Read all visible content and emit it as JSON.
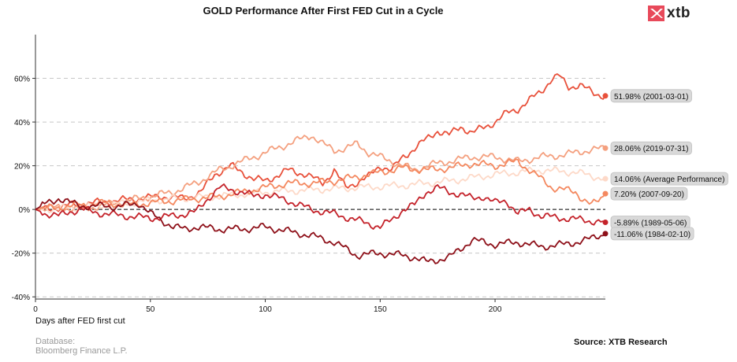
{
  "header": {
    "title": "GOLD Performance After First FED Cut in a Cycle",
    "logo_text": "xtb"
  },
  "footer": {
    "database_label": "Database:",
    "database_value": "Bloomberg Finance L.P.",
    "source": "Source: XTB Research"
  },
  "chart_data": {
    "type": "line",
    "title": "GOLD Performance After First FED Cut in a Cycle",
    "xlabel": "Days after FED first cut",
    "ylabel": "",
    "xlim": [
      0,
      248
    ],
    "ylim": [
      -41,
      80
    ],
    "xticks": [
      0,
      50,
      100,
      150,
      200
    ],
    "yticks": [
      -40,
      -20,
      0,
      20,
      40,
      60
    ],
    "ytick_format": "percent",
    "grid": "horizontal-dashed",
    "zero_line": true,
    "series": [
      {
        "name": "2001-03-01",
        "label": "51.98% (2001-03-01)",
        "final": 51.98,
        "color": "#e8503a",
        "points": [
          [
            0,
            0
          ],
          [
            8,
            0.5
          ],
          [
            15,
            2
          ],
          [
            25,
            3
          ],
          [
            35,
            4
          ],
          [
            45,
            5
          ],
          [
            55,
            6
          ],
          [
            65,
            5
          ],
          [
            72,
            8
          ],
          [
            78,
            16
          ],
          [
            85,
            20
          ],
          [
            95,
            14
          ],
          [
            100,
            13
          ],
          [
            110,
            18
          ],
          [
            118,
            16
          ],
          [
            125,
            12
          ],
          [
            130,
            18
          ],
          [
            135,
            10
          ],
          [
            145,
            15
          ],
          [
            150,
            20
          ],
          [
            155,
            18
          ],
          [
            160,
            24
          ],
          [
            165,
            28
          ],
          [
            170,
            32
          ],
          [
            175,
            36
          ],
          [
            180,
            34
          ],
          [
            185,
            38
          ],
          [
            190,
            35
          ],
          [
            200,
            40
          ],
          [
            205,
            44
          ],
          [
            210,
            46
          ],
          [
            215,
            50
          ],
          [
            220,
            54
          ],
          [
            225,
            60
          ],
          [
            228,
            61
          ],
          [
            232,
            56
          ],
          [
            237,
            57
          ],
          [
            243,
            53
          ],
          [
            248,
            52
          ]
        ]
      },
      {
        "name": "2019-07-31",
        "label": "28.06% (2019-07-31)",
        "final": 28.06,
        "color": "#f4a07f",
        "points": [
          [
            0,
            0
          ],
          [
            10,
            1
          ],
          [
            20,
            0
          ],
          [
            30,
            2
          ],
          [
            40,
            4
          ],
          [
            50,
            6
          ],
          [
            60,
            8
          ],
          [
            70,
            12
          ],
          [
            80,
            18
          ],
          [
            85,
            20
          ],
          [
            90,
            22
          ],
          [
            95,
            24
          ],
          [
            100,
            26
          ],
          [
            105,
            28
          ],
          [
            110,
            30
          ],
          [
            115,
            32
          ],
          [
            120,
            34
          ],
          [
            125,
            30
          ],
          [
            130,
            27
          ],
          [
            135,
            28
          ],
          [
            140,
            30
          ],
          [
            145,
            26
          ],
          [
            150,
            24
          ],
          [
            155,
            22
          ],
          [
            160,
            20
          ],
          [
            165,
            18
          ],
          [
            170,
            20
          ],
          [
            180,
            22
          ],
          [
            190,
            24
          ],
          [
            200,
            24
          ],
          [
            210,
            22
          ],
          [
            220,
            24
          ],
          [
            230,
            25
          ],
          [
            240,
            27
          ],
          [
            248,
            28
          ]
        ]
      },
      {
        "name": "Average Performance",
        "label": "14.06% (Average Performance)",
        "final": 14.06,
        "color": "#fdd9c8",
        "points": [
          [
            0,
            0
          ],
          [
            20,
            1
          ],
          [
            40,
            3
          ],
          [
            60,
            5
          ],
          [
            80,
            6
          ],
          [
            100,
            8
          ],
          [
            120,
            9
          ],
          [
            140,
            10
          ],
          [
            160,
            11
          ],
          [
            180,
            13
          ],
          [
            200,
            16
          ],
          [
            220,
            18
          ],
          [
            235,
            17
          ],
          [
            248,
            14
          ]
        ]
      },
      {
        "name": "2007-09-20",
        "label": "7.20% (2007-09-20)",
        "final": 7.2,
        "color": "#f4885f",
        "points": [
          [
            0,
            0
          ],
          [
            10,
            1
          ],
          [
            20,
            2
          ],
          [
            30,
            3
          ],
          [
            40,
            2
          ],
          [
            50,
            3
          ],
          [
            60,
            4
          ],
          [
            70,
            5
          ],
          [
            80,
            6
          ],
          [
            90,
            8
          ],
          [
            100,
            10
          ],
          [
            110,
            12
          ],
          [
            120,
            12
          ],
          [
            130,
            13
          ],
          [
            140,
            15
          ],
          [
            150,
            17
          ],
          [
            160,
            19
          ],
          [
            170,
            18
          ],
          [
            180,
            19
          ],
          [
            190,
            21
          ],
          [
            200,
            20
          ],
          [
            210,
            22
          ],
          [
            215,
            18
          ],
          [
            220,
            14
          ],
          [
            225,
            10
          ],
          [
            230,
            9
          ],
          [
            235,
            8
          ],
          [
            238,
            5
          ],
          [
            242,
            2
          ],
          [
            245,
            4
          ],
          [
            248,
            7
          ]
        ]
      },
      {
        "name": "1989-05-06",
        "label": "-5.89% (1989-05-06)",
        "final": -5.89,
        "color": "#c4222a",
        "points": [
          [
            0,
            0
          ],
          [
            5,
            -2
          ],
          [
            10,
            -3
          ],
          [
            15,
            -1
          ],
          [
            20,
            0
          ],
          [
            30,
            -2
          ],
          [
            40,
            -3
          ],
          [
            50,
            -4
          ],
          [
            60,
            -3
          ],
          [
            70,
            -1
          ],
          [
            75,
            5
          ],
          [
            80,
            10
          ],
          [
            90,
            8
          ],
          [
            95,
            6
          ],
          [
            100,
            7
          ],
          [
            110,
            4
          ],
          [
            120,
            0
          ],
          [
            130,
            -2
          ],
          [
            140,
            -5
          ],
          [
            150,
            -8
          ],
          [
            155,
            -5
          ],
          [
            160,
            0
          ],
          [
            165,
            2
          ],
          [
            170,
            8
          ],
          [
            175,
            10
          ],
          [
            180,
            8
          ],
          [
            185,
            7
          ],
          [
            190,
            5
          ],
          [
            195,
            6
          ],
          [
            200,
            3
          ],
          [
            205,
            4
          ],
          [
            210,
            -2
          ],
          [
            215,
            0
          ],
          [
            220,
            -3
          ],
          [
            230,
            -4
          ],
          [
            240,
            -5
          ],
          [
            248,
            -6
          ]
        ]
      },
      {
        "name": "1984-02-10",
        "label": "-11.06% (1984-02-10)",
        "final": -11.06,
        "color": "#8e1019",
        "points": [
          [
            0,
            0
          ],
          [
            5,
            3
          ],
          [
            10,
            5
          ],
          [
            15,
            3
          ],
          [
            20,
            2
          ],
          [
            25,
            1
          ],
          [
            30,
            2
          ],
          [
            35,
            1
          ],
          [
            40,
            2
          ],
          [
            45,
            3
          ],
          [
            50,
            -2
          ],
          [
            55,
            -5
          ],
          [
            60,
            -8
          ],
          [
            65,
            -9
          ],
          [
            70,
            -8
          ],
          [
            80,
            -9
          ],
          [
            90,
            -9
          ],
          [
            100,
            -8
          ],
          [
            110,
            -10
          ],
          [
            120,
            -12
          ],
          [
            130,
            -15
          ],
          [
            135,
            -18
          ],
          [
            140,
            -21
          ],
          [
            150,
            -20
          ],
          [
            160,
            -21
          ],
          [
            165,
            -22
          ],
          [
            170,
            -24
          ],
          [
            175,
            -23
          ],
          [
            180,
            -22
          ],
          [
            185,
            -18
          ],
          [
            190,
            -14
          ],
          [
            200,
            -16
          ],
          [
            210,
            -15
          ],
          [
            220,
            -17
          ],
          [
            230,
            -16
          ],
          [
            240,
            -14
          ],
          [
            245,
            -12
          ],
          [
            248,
            -11
          ]
        ]
      }
    ]
  }
}
